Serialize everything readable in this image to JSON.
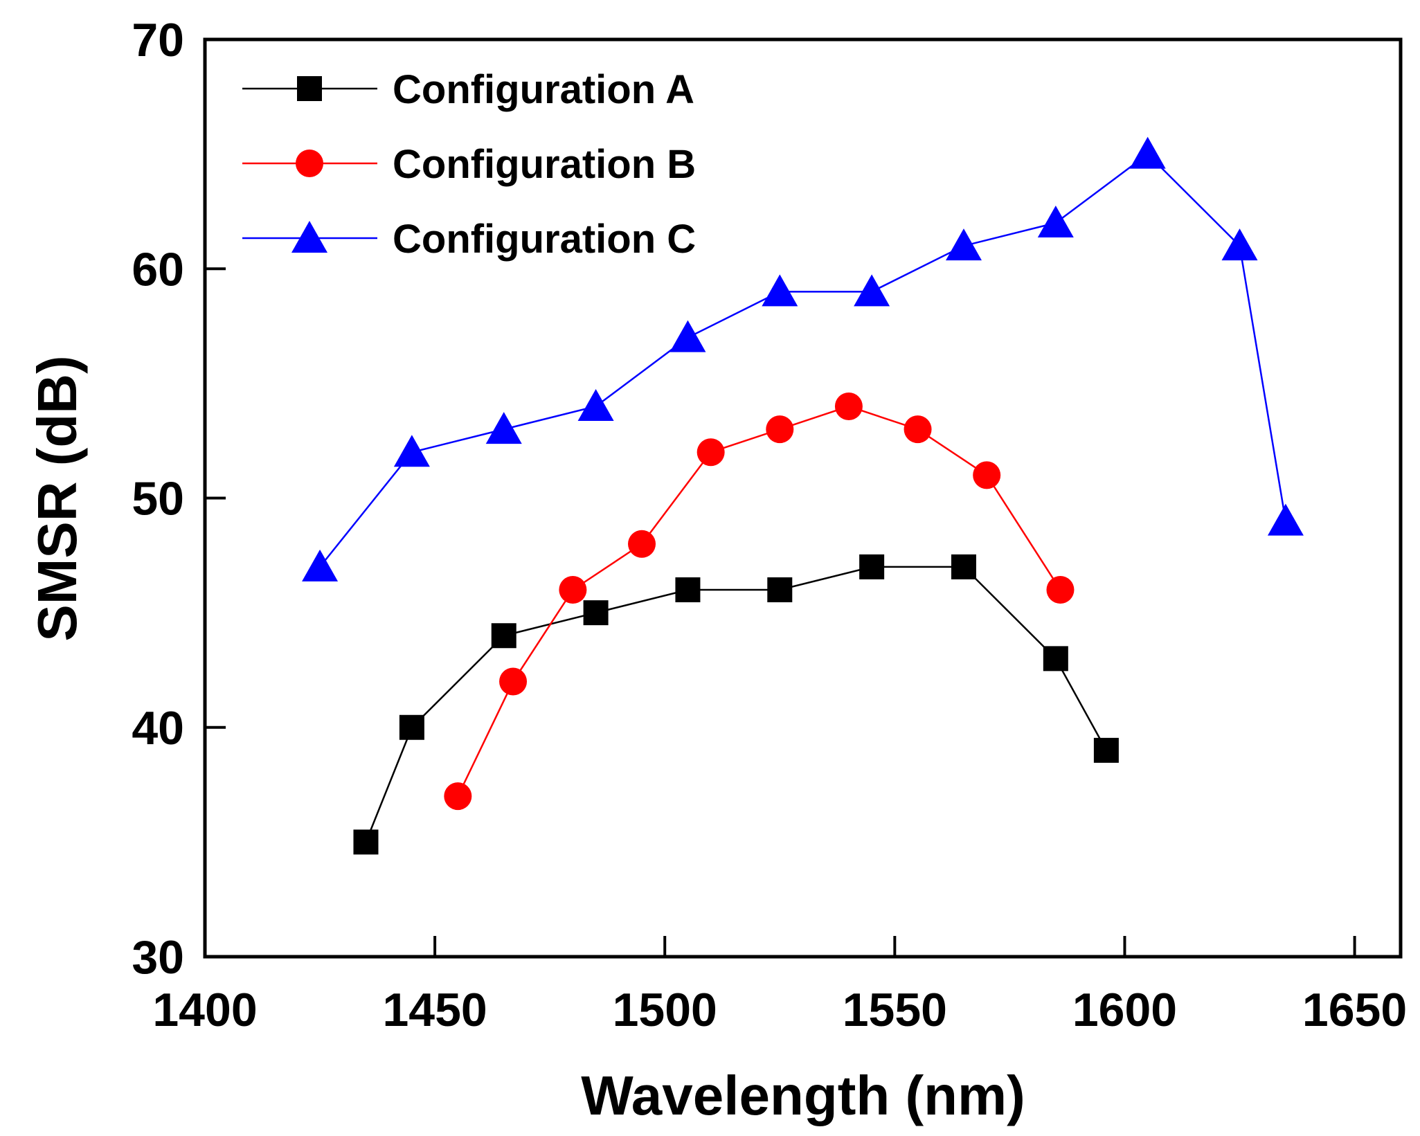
{
  "chart_data": {
    "type": "line",
    "title": "",
    "xlabel": "Wavelength (nm)",
    "ylabel": "SMSR (dB)",
    "xlim": [
      1400,
      1660
    ],
    "ylim": [
      30,
      70
    ],
    "xticks": [
      1400,
      1450,
      1500,
      1550,
      1600,
      1650
    ],
    "yticks": [
      30,
      40,
      50,
      60,
      70
    ],
    "grid": false,
    "legend_position": "top-left",
    "series": [
      {
        "name": "Configuration A",
        "color": "#000000",
        "marker": "square",
        "x": [
          1435,
          1445,
          1465,
          1485,
          1505,
          1525,
          1545,
          1565,
          1585,
          1596
        ],
        "y": [
          35,
          40,
          44,
          45,
          46,
          46,
          47,
          47,
          43,
          39
        ]
      },
      {
        "name": "Configuration B",
        "color": "#ff0000",
        "marker": "circle",
        "x": [
          1455,
          1467,
          1480,
          1495,
          1510,
          1525,
          1540,
          1555,
          1570,
          1586
        ],
        "y": [
          37,
          42,
          46,
          48,
          52,
          53,
          54,
          53,
          51,
          46
        ]
      },
      {
        "name": "Configuration C",
        "color": "#0000ff",
        "marker": "triangle",
        "x": [
          1425,
          1445,
          1465,
          1485,
          1505,
          1525,
          1545,
          1565,
          1585,
          1605,
          1625,
          1635
        ],
        "y": [
          47,
          52,
          53,
          54,
          57,
          59,
          59,
          61,
          62,
          65,
          61,
          49
        ]
      }
    ]
  }
}
